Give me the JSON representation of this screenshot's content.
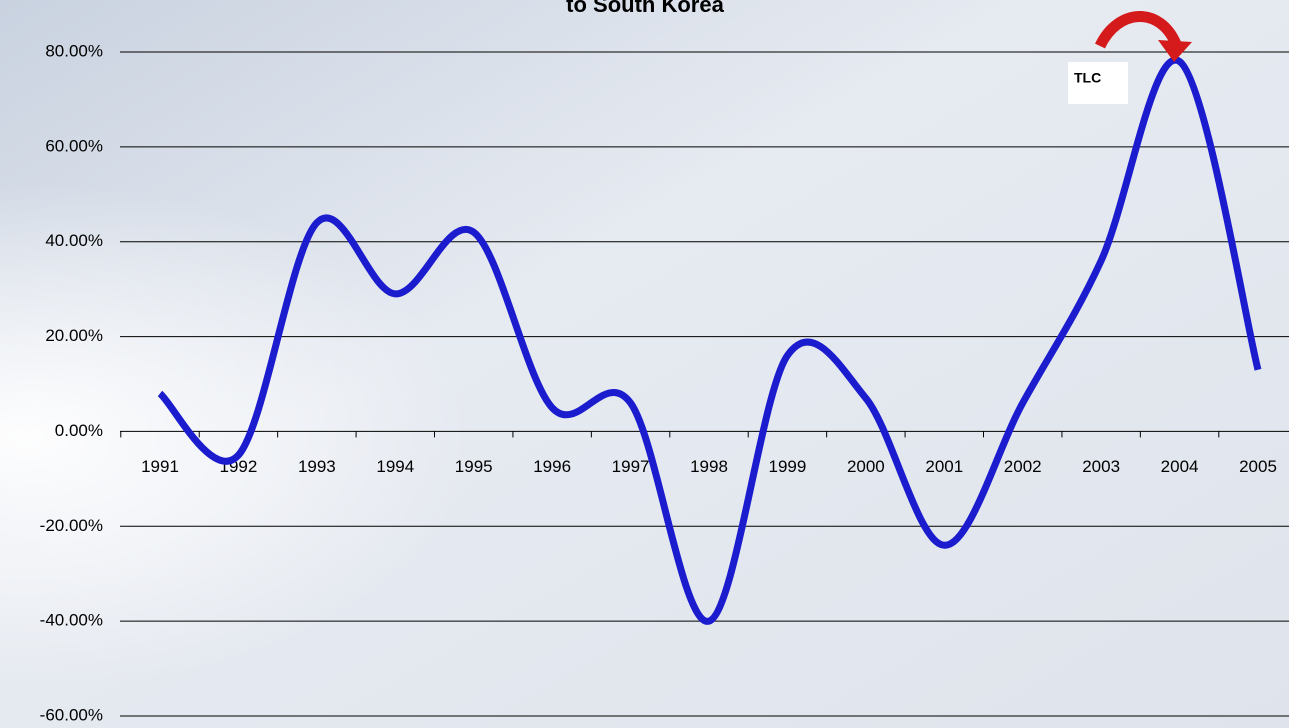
{
  "chart_data": {
    "type": "line",
    "title": "to South Korea",
    "categories": [
      "1991",
      "1992",
      "1993",
      "1994",
      "1995",
      "1996",
      "1997",
      "1998",
      "1999",
      "2000",
      "2001",
      "2002",
      "2003",
      "2004",
      "2005"
    ],
    "series": [
      {
        "color": "#1c1ccf",
        "values": [
          8,
          -5,
          44,
          29,
          42,
          5,
          6,
          -40,
          16,
          7,
          -24,
          6,
          36,
          78,
          13
        ]
      }
    ],
    "ylim": [
      -60,
      80
    ],
    "yticks": [
      {
        "value": -60,
        "label": "-60.00%"
      },
      {
        "value": -40,
        "label": "-40.00%"
      },
      {
        "value": -20,
        "label": "-20.00%"
      },
      {
        "value": 0,
        "label": "0.00%"
      },
      {
        "value": 20,
        "label": "20.00%"
      },
      {
        "value": 40,
        "label": "40.00%"
      },
      {
        "value": 60,
        "label": "60.00%"
      },
      {
        "value": 80,
        "label": "80.00%"
      }
    ],
    "grid": true,
    "annotations": [
      "TLC"
    ]
  }
}
